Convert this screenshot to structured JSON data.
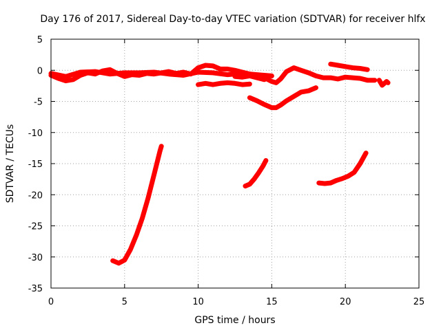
{
  "chart_data": {
    "type": "line",
    "title": "Day 176 of 2017, Sidereal Day-to-day VTEC variation (SDTVAR) for receiver hlfx",
    "xlabel": "GPS time / hours",
    "ylabel": "SDTVAR / TECUs",
    "xlim": [
      0,
      25
    ],
    "ylim": [
      -35,
      5
    ],
    "xticks": [
      0,
      5,
      10,
      15,
      20,
      25
    ],
    "yticks": [
      5,
      0,
      -5,
      -10,
      -15,
      -20,
      -25,
      -30,
      -35
    ],
    "grid": true,
    "color": "#ff0000",
    "series": [
      {
        "values": [
          [
            0.0,
            -0.8
          ],
          [
            0.5,
            -1.3
          ],
          [
            1.0,
            -1.7
          ],
          [
            1.5,
            -1.5
          ],
          [
            2.0,
            -0.8
          ],
          [
            2.5,
            -0.4
          ],
          [
            3.0,
            -0.6
          ],
          [
            3.5,
            -0.1
          ],
          [
            4.0,
            0.1
          ],
          [
            4.5,
            -0.5
          ],
          [
            5.0,
            -1.0
          ],
          [
            5.5,
            -0.7
          ],
          [
            6.0,
            -0.8
          ],
          [
            6.5,
            -0.5
          ],
          [
            7.0,
            -0.6
          ],
          [
            7.5,
            -0.4
          ],
          [
            8.0,
            -0.2
          ],
          [
            8.5,
            -0.5
          ],
          [
            9.0,
            -0.3
          ],
          [
            9.5,
            -0.6
          ],
          [
            10.0,
            0.4
          ],
          [
            10.5,
            0.8
          ],
          [
            11.0,
            0.7
          ],
          [
            11.5,
            0.2
          ],
          [
            12.0,
            0.2
          ],
          [
            12.5,
            0.0
          ],
          [
            13.0,
            -0.3
          ],
          [
            13.5,
            -0.6
          ],
          [
            14.0,
            -0.9
          ],
          [
            14.5,
            -1.2
          ],
          [
            15.0,
            -1.8
          ],
          [
            15.3,
            -2.0
          ],
          [
            15.6,
            -1.4
          ],
          [
            16.0,
            -0.2
          ],
          [
            16.5,
            0.4
          ],
          [
            17.0,
            0.0
          ],
          [
            17.5,
            -0.4
          ],
          [
            18.0,
            -0.9
          ],
          [
            18.5,
            -1.2
          ],
          [
            19.0,
            -1.2
          ],
          [
            19.5,
            -1.4
          ],
          [
            20.0,
            -1.1
          ],
          [
            20.5,
            -1.2
          ],
          [
            21.0,
            -1.3
          ],
          [
            21.5,
            -1.6
          ],
          [
            22.0,
            -1.6
          ]
        ]
      },
      {
        "values": [
          [
            0.0,
            -0.5
          ],
          [
            1.0,
            -1.0
          ],
          [
            2.0,
            -0.3
          ],
          [
            3.0,
            -0.2
          ],
          [
            4.0,
            -0.6
          ],
          [
            5.0,
            -0.4
          ],
          [
            6.0,
            -0.4
          ],
          [
            7.0,
            -0.3
          ],
          [
            8.0,
            -0.6
          ],
          [
            9.0,
            -0.8
          ],
          [
            10.0,
            -0.3
          ],
          [
            11.0,
            -0.4
          ],
          [
            12.0,
            -0.7
          ],
          [
            13.0,
            -0.5
          ],
          [
            14.0,
            -0.7
          ],
          [
            15.0,
            -0.9
          ]
        ]
      },
      {
        "values": [
          [
            10.0,
            -2.3
          ],
          [
            10.5,
            -2.1
          ],
          [
            11.0,
            -2.3
          ],
          [
            11.5,
            -2.1
          ],
          [
            12.0,
            -2.0
          ],
          [
            12.5,
            -2.1
          ],
          [
            13.0,
            -2.3
          ],
          [
            13.5,
            -2.2
          ]
        ]
      },
      {
        "values": [
          [
            12.5,
            -1.0
          ],
          [
            13.0,
            -1.1
          ],
          [
            13.5,
            -0.9
          ],
          [
            14.0,
            -1.2
          ],
          [
            14.5,
            -1.5
          ]
        ]
      },
      {
        "values": [
          [
            19.0,
            1.0
          ],
          [
            19.5,
            0.8
          ],
          [
            20.0,
            0.6
          ],
          [
            20.5,
            0.4
          ],
          [
            21.0,
            0.3
          ],
          [
            21.5,
            0.1
          ]
        ]
      },
      {
        "values": [
          [
            13.5,
            -4.4
          ],
          [
            14.0,
            -4.9
          ],
          [
            14.5,
            -5.5
          ],
          [
            15.0,
            -6.0
          ],
          [
            15.3,
            -6.0
          ],
          [
            15.6,
            -5.6
          ],
          [
            16.0,
            -4.9
          ],
          [
            16.5,
            -4.2
          ],
          [
            17.0,
            -3.5
          ],
          [
            17.5,
            -3.3
          ],
          [
            18.0,
            -2.8
          ]
        ]
      },
      {
        "values": [
          [
            22.3,
            -1.6
          ],
          [
            22.5,
            -2.4
          ],
          [
            22.8,
            -1.8
          ],
          [
            22.9,
            -2.0
          ]
        ]
      },
      {
        "values": [
          [
            4.2,
            -30.6
          ],
          [
            4.6,
            -31.0
          ],
          [
            5.0,
            -30.5
          ],
          [
            5.4,
            -28.8
          ],
          [
            5.8,
            -26.5
          ],
          [
            6.2,
            -23.8
          ],
          [
            6.6,
            -20.5
          ],
          [
            7.0,
            -16.8
          ],
          [
            7.4,
            -13.0
          ],
          [
            7.5,
            -12.2
          ]
        ]
      },
      {
        "values": [
          [
            13.2,
            -18.6
          ],
          [
            13.5,
            -18.3
          ],
          [
            13.8,
            -17.5
          ],
          [
            14.1,
            -16.5
          ],
          [
            14.4,
            -15.4
          ],
          [
            14.6,
            -14.5
          ]
        ]
      },
      {
        "values": [
          [
            18.2,
            -18.1
          ],
          [
            18.6,
            -18.2
          ],
          [
            19.0,
            -18.1
          ],
          [
            19.4,
            -17.7
          ],
          [
            19.8,
            -17.4
          ],
          [
            20.2,
            -17.0
          ],
          [
            20.6,
            -16.4
          ],
          [
            21.0,
            -15.0
          ],
          [
            21.4,
            -13.3
          ]
        ]
      }
    ]
  }
}
